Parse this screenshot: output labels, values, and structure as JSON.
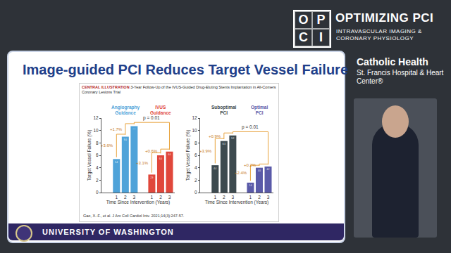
{
  "slide": {
    "title": "Image-guided PCI Reduces Target Vessel Failure",
    "header": {
      "logo": "OPCI",
      "name": "OPTIMIZING PCI",
      "tagline": "INTRAVASCULAR IMAGING & CORONARY PHYSIOLOGY"
    },
    "sponsor": {
      "name": "Catholic Health",
      "hospital": "St. Francis Hospital & Heart Center®"
    },
    "figure": {
      "label": "CENTRAL ILLUSTRATION",
      "caption": "3-Year Follow-Up of the IVUS-Guided Drug-Eluting Stents Implantation in All-Comers Coronary Lesions Trial",
      "citation": "Gao, X.-F., et al. J Am Coll Cardiol Intv. 2021;14(3):247-57."
    },
    "footer": "UNIVERSITY OF WASHINGTON"
  },
  "chart_data": [
    {
      "type": "bar",
      "categories": [
        "1",
        "2",
        "3"
      ],
      "xlabel": "Time Since Intervention (Years)",
      "ylabel": "Target Vessel Failure (%)",
      "ylim": [
        0,
        12
      ],
      "yticks": [
        0,
        2,
        4,
        6,
        8,
        10,
        12
      ],
      "grid": false,
      "data_labels": true,
      "p_value": "p = 0.01",
      "series": [
        {
          "name": "Angiography Guidance",
          "color": "#4fa3d9",
          "values": [
            5.4,
            9.0,
            10.7
          ],
          "value_labels": [
            "5.4",
            "9.0",
            "10.7"
          ],
          "increment_labels": [
            "+3.6%",
            "+1.7%"
          ]
        },
        {
          "name": "IVUS Guidance",
          "color": "#e0473b",
          "values": [
            2.9,
            6.0,
            6.6
          ],
          "value_labels": [
            "2.9",
            "6.0",
            "6.6"
          ],
          "increment_labels": [
            "+3.1%",
            "+0.6%"
          ]
        }
      ]
    },
    {
      "type": "bar",
      "categories": [
        "1",
        "2",
        "3"
      ],
      "xlabel": "Time Since Intervention (Years)",
      "ylabel": "Target Vessel Failure (%)",
      "ylim": [
        0,
        12
      ],
      "yticks": [
        0,
        2,
        4,
        6,
        8,
        10,
        12
      ],
      "grid": false,
      "data_labels": true,
      "p_value": "p = 0.01",
      "series": [
        {
          "name": "Suboptimal PCI",
          "color": "#3d4a4f",
          "values": [
            4.4,
            8.3,
            9.2
          ],
          "value_labels": [
            "4.4",
            "8.3",
            "9.2"
          ],
          "increment_labels": [
            "+3.9%",
            "+0.9%"
          ]
        },
        {
          "name": "Optimal PCI",
          "color": "#5a5aa8",
          "values": [
            1.6,
            4.0,
            4.2
          ],
          "value_labels": [
            "1.6",
            "4.0",
            "4.2"
          ],
          "increment_labels": [
            "+2.4%",
            "+0.2%"
          ]
        }
      ]
    }
  ]
}
